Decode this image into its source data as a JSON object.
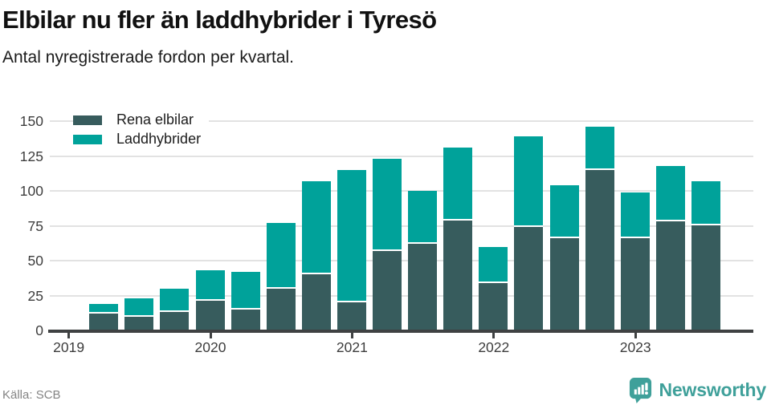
{
  "title": "Elbilar nu fler än laddhybrider i Tyresö",
  "subtitle": "Antal nyregistrerade fordon per kvartal.",
  "source": "Källa: SCB",
  "logo": {
    "text": "Newsworthy",
    "color": "#3fa09a"
  },
  "colors": {
    "rena_elbilar": "#375c5d",
    "laddhybrider": "#00a29a",
    "gridline": "#e2e2e2",
    "axis": "#3f4142",
    "tick_label": "#3d3d3d"
  },
  "chart_data": {
    "type": "bar",
    "stacked": true,
    "title": "Elbilar nu fler än laddhybrider i Tyresö",
    "subtitle": "Antal nyregistrerade fordon per kvartal.",
    "categories": [
      "2019 Q2",
      "2019 Q3",
      "2019 Q4",
      "2020 Q1",
      "2020 Q2",
      "2020 Q3",
      "2020 Q4",
      "2021 Q1",
      "2021 Q2",
      "2021 Q3",
      "2021 Q4",
      "2022 Q1",
      "2022 Q2",
      "2022 Q3",
      "2022 Q4",
      "2023 Q1",
      "2023 Q2",
      "2023 Q3"
    ],
    "series": [
      {
        "name": "Rena elbilar",
        "color": "#375c5d",
        "values": [
          12,
          10,
          13,
          21,
          15,
          30,
          40,
          20,
          57,
          62,
          79,
          34,
          74,
          66,
          115,
          66,
          78,
          75
        ]
      },
      {
        "name": "Laddhybrider",
        "color": "#00a29a",
        "values": [
          7,
          13,
          17,
          22,
          27,
          47,
          67,
          95,
          66,
          38,
          52,
          26,
          65,
          38,
          31,
          33,
          40,
          32
        ]
      }
    ],
    "x_tick_labels": [
      "2019",
      "2020",
      "2021",
      "2022",
      "2023"
    ],
    "yticks": [
      0,
      25,
      50,
      75,
      100,
      125,
      150
    ],
    "ylim": [
      0,
      150
    ],
    "legend_position": "top-left",
    "grid": "horizontal",
    "xlabel": "",
    "ylabel": ""
  }
}
